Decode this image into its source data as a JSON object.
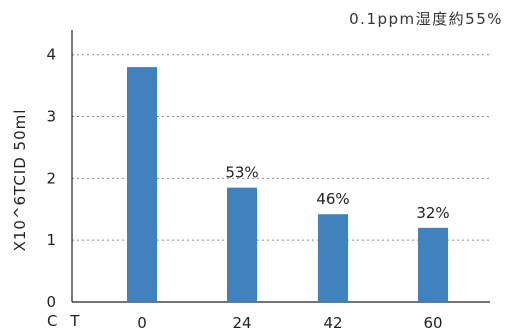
{
  "chart_data": {
    "type": "bar",
    "categories": [
      "0",
      "24",
      "42",
      "60"
    ],
    "values": [
      3.8,
      1.85,
      1.42,
      1.2
    ],
    "data_labels": [
      "",
      "53%",
      "46%",
      "32%"
    ],
    "title": "",
    "annotation": "0.1ppm湿度約55%",
    "xlabel": "C T",
    "ylabel": "X10^6TCID 50ml",
    "ylim": [
      0,
      4.4
    ],
    "yticks": [
      0,
      1,
      2,
      3,
      4
    ],
    "grid": true,
    "bar_color": "#3f82bd",
    "grid_color": "#8a8a8a"
  }
}
